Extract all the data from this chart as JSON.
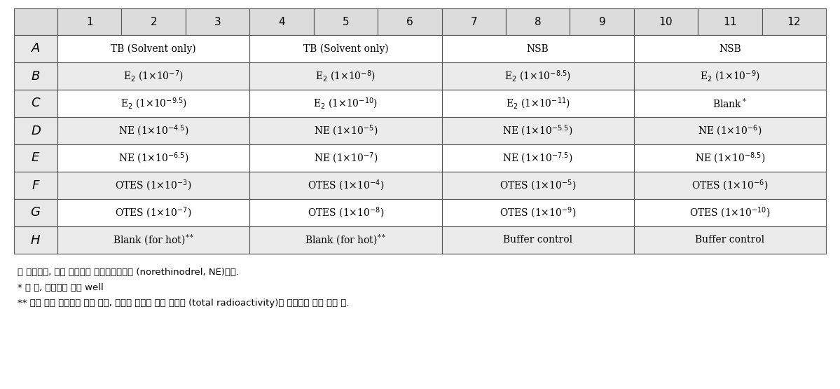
{
  "header_nums": [
    "1",
    "2",
    "3",
    "4",
    "5",
    "6",
    "7",
    "8",
    "9",
    "10",
    "11",
    "12"
  ],
  "row_labels": [
    "A",
    "B",
    "C",
    "D",
    "E",
    "F",
    "G",
    "H"
  ],
  "cells": [
    [
      "TB (Solvent only)",
      "TB (Solvent only)",
      "NSB",
      "NSB"
    ],
    [
      "E$_2$ (1×10$^{-7}$)",
      "E$_2$ (1×10$^{-8}$)",
      "E$_2$ (1×10$^{-8.5}$)",
      "E$_2$ (1×10$^{-9}$)"
    ],
    [
      "E$_2$ (1×10$^{-9.5}$)",
      "E$_2$ (1×10$^{-10}$)",
      "E$_2$ (1×10$^{-11}$)",
      "Blank$^*$"
    ],
    [
      "NE (1×10$^{-4.5}$)",
      "NE (1×10$^{-5}$)",
      "NE (1×10$^{-5.5}$)",
      "NE (1×10$^{-6}$)"
    ],
    [
      "NE (1×10$^{-6.5}$)",
      "NE (1×10$^{-7}$)",
      "NE (1×10$^{-7.5}$)",
      "NE (1×10$^{-8.5}$)"
    ],
    [
      "OTES (1×10$^{-3}$)",
      "OTES (1×10$^{-4}$)",
      "OTES (1×10$^{-5}$)",
      "OTES (1×10$^{-6}$)"
    ],
    [
      "OTES (1×10$^{-7}$)",
      "OTES (1×10$^{-8}$)",
      "OTES (1×10$^{-9}$)",
      "OTES (1×10$^{-10}$)"
    ],
    [
      "Blank (for hot)$^{**}$",
      "Blank (for hot)$^{**}$",
      "Buffer control",
      "Buffer control"
    ]
  ],
  "col_starts": [
    1,
    4,
    7,
    10
  ],
  "header_bg": "#dcdcdc",
  "row_label_bg": "#e8e8e8",
  "cell_bg_even": "#ffffff",
  "cell_bg_odd": "#f5f5f5",
  "border_color": "#555555",
  "text_color": "#000000",
  "footnote1": "본 예제에서, 약한 결합체는 노르에티노드렁 (norethinodrel, NE)이다.",
  "footnote2": "* 빈 칸, 사용하지 않는 well",
  "footnote3": "** 배양 중에 사용하지 않는 빈칸, 그러나 추가된 전체 방사능 (total radioactivity)을 확인하기 위해 사용 함."
}
